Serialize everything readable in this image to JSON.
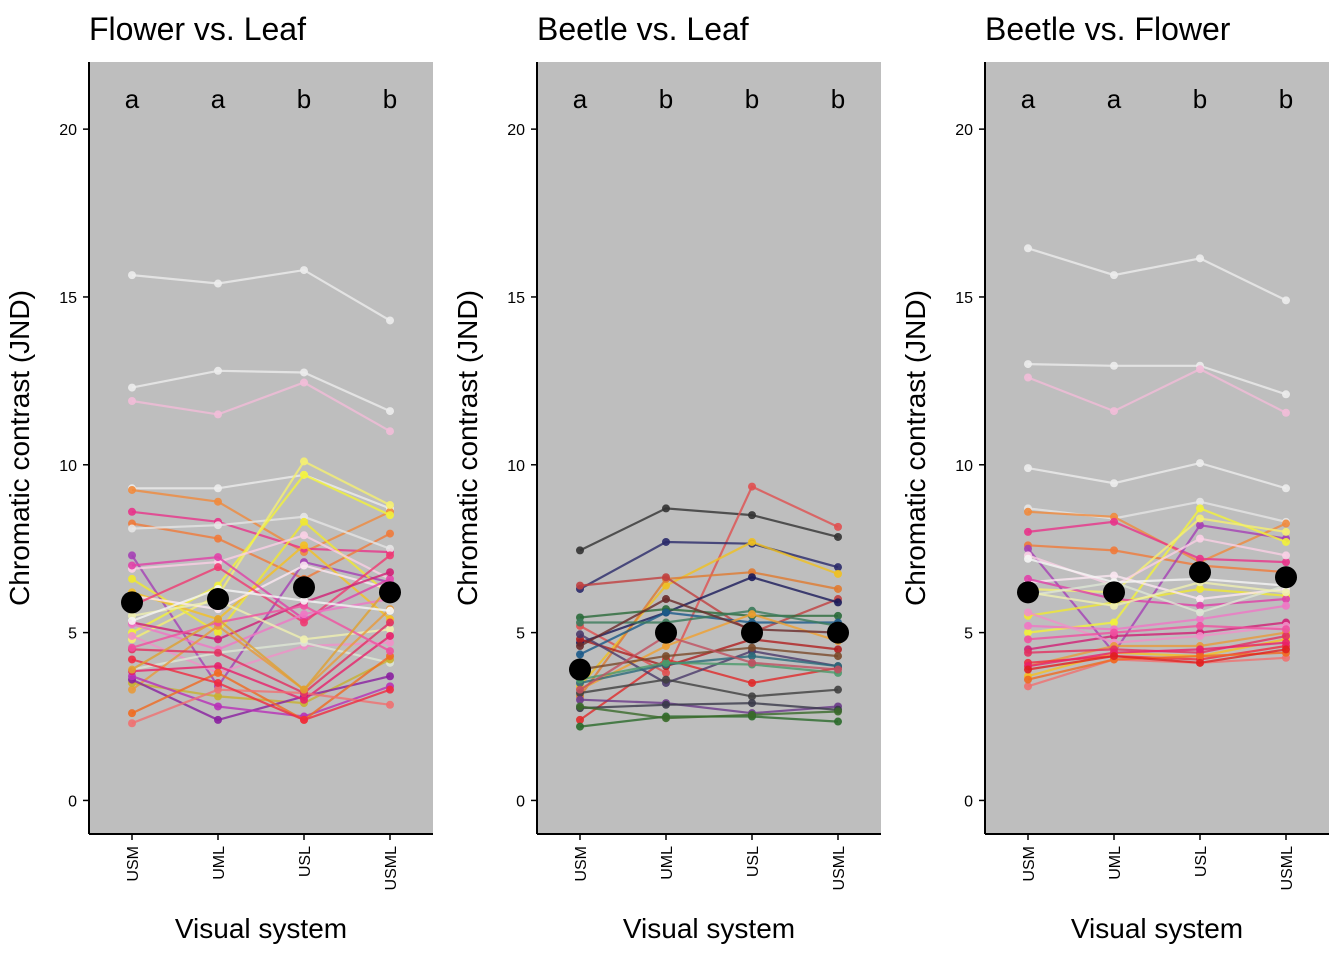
{
  "chart_data": [
    {
      "type": "line",
      "title": "Flower vs. Leaf",
      "xlabel": "Visual system",
      "ylabel": "Chromatic contrast (JND)",
      "categories": [
        "USM",
        "UML",
        "USL",
        "USML"
      ],
      "ylim": [
        -1,
        22
      ],
      "yticks": [
        0,
        5,
        10,
        15,
        20
      ],
      "yticklabels": [
        "0",
        "5",
        "10",
        "15",
        "20"
      ],
      "significance_letters": [
        "a",
        "a",
        "b",
        "b"
      ],
      "means": [
        5.9,
        6.0,
        6.35,
        6.2
      ],
      "series": [
        {
          "color": "#ececec",
          "values": [
            15.65,
            15.4,
            15.8,
            14.3
          ]
        },
        {
          "color": "#ececec",
          "values": [
            12.3,
            12.8,
            12.75,
            11.6
          ]
        },
        {
          "color": "#f2bcd8",
          "values": [
            11.9,
            11.5,
            12.45,
            11.0
          ]
        },
        {
          "color": "#ececec",
          "values": [
            9.3,
            9.3,
            9.7,
            8.7
          ]
        },
        {
          "color": "#f08a3c",
          "values": [
            9.25,
            8.9,
            7.4,
            8.6
          ]
        },
        {
          "color": "#e8338a",
          "values": [
            8.6,
            8.3,
            7.5,
            7.4
          ]
        },
        {
          "color": "#f07a3a",
          "values": [
            8.25,
            7.8,
            6.6,
            7.95
          ]
        },
        {
          "color": "#e5e5e5",
          "values": [
            8.1,
            8.2,
            8.45,
            7.5
          ]
        },
        {
          "color": "#a540b5",
          "values": [
            7.3,
            3.4,
            7.1,
            6.5
          ]
        },
        {
          "color": "#f5f070",
          "values": [
            4.8,
            6.1,
            10.1,
            8.8
          ]
        },
        {
          "color": "#f2f23a",
          "values": [
            5.0,
            6.4,
            9.7,
            8.5
          ]
        },
        {
          "color": "#f0e830",
          "values": [
            6.6,
            5.0,
            8.3,
            6.1
          ]
        },
        {
          "color": "#f5c020",
          "values": [
            6.2,
            5.4,
            7.6,
            5.4
          ]
        },
        {
          "color": "#fad0e5",
          "values": [
            6.9,
            7.1,
            7.9,
            6.6
          ]
        },
        {
          "color": "#fbe7f1",
          "values": [
            6.1,
            5.7,
            7.0,
            6.3
          ]
        },
        {
          "color": "#e040a8",
          "values": [
            7.0,
            7.25,
            5.4,
            6.6
          ]
        },
        {
          "color": "#ef3a72",
          "values": [
            5.8,
            6.95,
            5.3,
            7.3
          ]
        },
        {
          "color": "#d11f75",
          "values": [
            5.3,
            4.8,
            5.9,
            6.8
          ]
        },
        {
          "color": "#ef77c5",
          "values": [
            5.25,
            4.5,
            5.55,
            6.0
          ]
        },
        {
          "color": "#f090c8",
          "values": [
            4.9,
            3.8,
            4.6,
            4.7
          ]
        },
        {
          "color": "#dde6d5",
          "values": [
            3.9,
            4.4,
            4.7,
            4.1
          ]
        },
        {
          "color": "#eff0b0",
          "values": [
            5.5,
            5.95,
            4.8,
            5.1
          ]
        },
        {
          "color": "#e89a3a",
          "values": [
            3.3,
            5.2,
            3.3,
            5.7
          ]
        },
        {
          "color": "#c8b030",
          "values": [
            3.5,
            3.1,
            2.9,
            4.2
          ]
        },
        {
          "color": "#8a1fa0",
          "values": [
            3.6,
            2.4,
            3.1,
            3.7
          ]
        },
        {
          "color": "#b830b8",
          "values": [
            3.7,
            2.8,
            2.5,
            3.4
          ]
        },
        {
          "color": "#e8206a",
          "values": [
            3.85,
            4.0,
            3.0,
            4.9
          ]
        },
        {
          "color": "#f06a20",
          "values": [
            2.6,
            3.8,
            2.4,
            4.3
          ]
        },
        {
          "color": "#f07070",
          "values": [
            2.3,
            3.3,
            3.2,
            2.85
          ]
        },
        {
          "color": "#f02a40",
          "values": [
            4.2,
            3.5,
            2.4,
            3.3
          ]
        },
        {
          "color": "#e23060",
          "values": [
            4.5,
            4.4,
            3.2,
            5.3
          ]
        },
        {
          "color": "#f050a0",
          "values": [
            4.55,
            5.3,
            5.8,
            4.45
          ]
        },
        {
          "color": "#e0a030",
          "values": [
            3.9,
            5.4,
            3.3,
            6.4
          ]
        },
        {
          "color": "#f5f5f5",
          "values": [
            5.35,
            6.3,
            5.95,
            5.65
          ]
        }
      ]
    },
    {
      "type": "line",
      "title": "Beetle vs. Leaf",
      "xlabel": "Visual system",
      "ylabel": "Chromatic contrast (JND)",
      "categories": [
        "USM",
        "UML",
        "USL",
        "USML"
      ],
      "ylim": [
        -1,
        22
      ],
      "yticks": [
        0,
        5,
        10,
        15,
        20
      ],
      "yticklabels": [
        "0",
        "5",
        "10",
        "15",
        "20"
      ],
      "significance_letters": [
        "a",
        "b",
        "b",
        "b"
      ],
      "means": [
        3.9,
        5.0,
        5.0,
        5.0
      ],
      "series": [
        {
          "color": "#333333",
          "values": [
            7.45,
            8.7,
            8.5,
            7.85
          ]
        },
        {
          "color": "#e05050",
          "values": [
            5.2,
            3.8,
            9.35,
            8.15
          ]
        },
        {
          "color": "#2a2a6a",
          "values": [
            6.3,
            7.7,
            7.65,
            6.95
          ]
        },
        {
          "color": "#f0c020",
          "values": [
            3.4,
            6.4,
            7.7,
            6.75
          ]
        },
        {
          "color": "#e07a30",
          "values": [
            3.1,
            6.6,
            6.8,
            6.3
          ]
        },
        {
          "color": "#c04040",
          "values": [
            6.4,
            6.65,
            5.0,
            6.0
          ]
        },
        {
          "color": "#1a1a5a",
          "values": [
            4.7,
            5.6,
            6.65,
            5.9
          ]
        },
        {
          "color": "#2a6a3a",
          "values": [
            5.45,
            5.7,
            5.5,
            5.5
          ]
        },
        {
          "color": "#1a5a8a",
          "values": [
            4.35,
            5.6,
            5.3,
            5.3
          ]
        },
        {
          "color": "#3a7a5a",
          "values": [
            5.3,
            5.3,
            5.65,
            5.2
          ]
        },
        {
          "color": "#f0a030",
          "values": [
            3.3,
            4.6,
            5.55,
            4.75
          ]
        },
        {
          "color": "#b02020",
          "values": [
            4.8,
            4.0,
            4.8,
            4.5
          ]
        },
        {
          "color": "#e02a2a",
          "values": [
            2.4,
            4.2,
            3.5,
            3.95
          ]
        },
        {
          "color": "#4a3a6a",
          "values": [
            4.95,
            3.5,
            4.45,
            4.0
          ]
        },
        {
          "color": "#2a6a7a",
          "values": [
            3.5,
            4.05,
            4.3,
            4.0
          ]
        },
        {
          "color": "#4a9a6a",
          "values": [
            3.6,
            4.1,
            4.05,
            3.8
          ]
        },
        {
          "color": "#404040",
          "values": [
            3.2,
            3.6,
            3.1,
            3.3
          ]
        },
        {
          "color": "#6a3a8a",
          "values": [
            3.0,
            2.9,
            2.6,
            2.8
          ]
        },
        {
          "color": "#3a3a4a",
          "values": [
            2.75,
            2.85,
            2.9,
            2.7
          ]
        },
        {
          "color": "#2a6a2a",
          "values": [
            2.2,
            2.5,
            2.5,
            2.35
          ]
        },
        {
          "color": "#3a6a2a",
          "values": [
            2.8,
            2.45,
            2.55,
            2.65
          ]
        },
        {
          "color": "#6a2a2a",
          "values": [
            4.6,
            6.0,
            5.1,
            5.0
          ]
        },
        {
          "color": "#7a4a2a",
          "values": [
            3.9,
            4.3,
            4.55,
            4.3
          ]
        },
        {
          "color": "#c05060",
          "values": [
            3.3,
            4.9,
            4.1,
            3.9
          ]
        }
      ]
    },
    {
      "type": "line",
      "title": "Beetle vs. Flower",
      "xlabel": "Visual system",
      "ylabel": "Chromatic contrast (JND)",
      "categories": [
        "USM",
        "UML",
        "USL",
        "USML"
      ],
      "ylim": [
        -1,
        22
      ],
      "yticks": [
        0,
        5,
        10,
        15,
        20
      ],
      "yticklabels": [
        "0",
        "5",
        "10",
        "15",
        "20"
      ],
      "significance_letters": [
        "a",
        "a",
        "b",
        "b"
      ],
      "means": [
        6.2,
        6.2,
        6.8,
        6.65
      ],
      "series": [
        {
          "color": "#ececec",
          "values": [
            16.45,
            15.65,
            16.15,
            14.9
          ]
        },
        {
          "color": "#ececec",
          "values": [
            13.0,
            12.95,
            12.95,
            12.1
          ]
        },
        {
          "color": "#f2bcd8",
          "values": [
            12.6,
            11.6,
            12.85,
            11.55
          ]
        },
        {
          "color": "#ececec",
          "values": [
            9.9,
            9.45,
            10.05,
            9.3
          ]
        },
        {
          "color": "#e5e5e5",
          "values": [
            8.7,
            8.4,
            8.9,
            8.3
          ]
        },
        {
          "color": "#f08a3c",
          "values": [
            8.6,
            8.45,
            7.1,
            8.25
          ]
        },
        {
          "color": "#e8338a",
          "values": [
            8.0,
            8.3,
            7.2,
            7.1
          ]
        },
        {
          "color": "#f07a3a",
          "values": [
            7.6,
            7.45,
            7.0,
            6.8
          ]
        },
        {
          "color": "#a540b5",
          "values": [
            7.5,
            4.4,
            8.2,
            7.8
          ]
        },
        {
          "color": "#f2f23a",
          "values": [
            5.0,
            5.3,
            8.7,
            7.7
          ]
        },
        {
          "color": "#f5f070",
          "values": [
            6.3,
            6.2,
            8.4,
            8.0
          ]
        },
        {
          "color": "#f0e830",
          "values": [
            5.5,
            5.9,
            6.3,
            6.1
          ]
        },
        {
          "color": "#fad0e5",
          "values": [
            7.3,
            6.4,
            7.8,
            7.3
          ]
        },
        {
          "color": "#fbe7f1",
          "values": [
            6.5,
            6.7,
            6.0,
            6.3
          ]
        },
        {
          "color": "#e040a8",
          "values": [
            6.6,
            6.0,
            5.8,
            6.0
          ]
        },
        {
          "color": "#ef77c5",
          "values": [
            5.2,
            5.1,
            5.4,
            5.8
          ]
        },
        {
          "color": "#d11f75",
          "values": [
            4.5,
            4.9,
            5.0,
            5.3
          ]
        },
        {
          "color": "#f090c8",
          "values": [
            5.6,
            4.7,
            4.9,
            5.2
          ]
        },
        {
          "color": "#e89a3a",
          "values": [
            4.0,
            4.6,
            4.6,
            5.0
          ]
        },
        {
          "color": "#f5c020",
          "values": [
            3.7,
            4.4,
            4.3,
            4.8
          ]
        },
        {
          "color": "#e23060",
          "values": [
            4.4,
            4.5,
            4.4,
            4.9
          ]
        },
        {
          "color": "#f02a40",
          "values": [
            4.1,
            4.3,
            4.2,
            4.6
          ]
        },
        {
          "color": "#f07070",
          "values": [
            3.4,
            4.2,
            4.1,
            4.25
          ]
        },
        {
          "color": "#f06a20",
          "values": [
            3.6,
            4.2,
            4.3,
            4.4
          ]
        },
        {
          "color": "#e8206a",
          "values": [
            4.0,
            4.4,
            4.5,
            4.7
          ]
        },
        {
          "color": "#e02020",
          "values": [
            3.9,
            4.3,
            4.1,
            4.5
          ]
        },
        {
          "color": "#dde6d5",
          "values": [
            6.1,
            6.5,
            5.6,
            6.4
          ]
        },
        {
          "color": "#f5f5f5",
          "values": [
            7.2,
            6.5,
            6.6,
            6.4
          ]
        },
        {
          "color": "#f050a0",
          "values": [
            4.8,
            5.0,
            5.2,
            5.1
          ]
        },
        {
          "color": "#eff0b0",
          "values": [
            6.2,
            5.8,
            6.5,
            6.2
          ]
        }
      ]
    }
  ]
}
